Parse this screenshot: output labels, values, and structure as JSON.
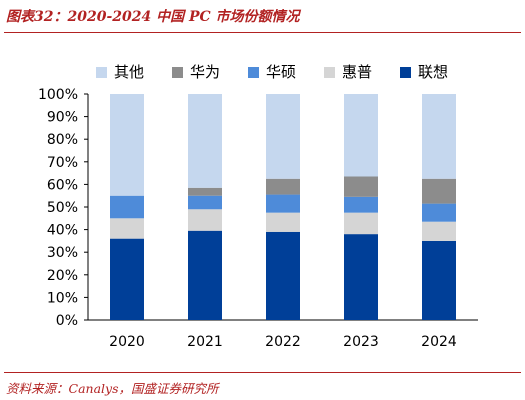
{
  "header": {
    "title": "图表32：2020-2024 中国 PC 市场份额情况"
  },
  "footer": {
    "source": "资料来源：Canalys，国盛证券研究所"
  },
  "chart_data": {
    "type": "bar",
    "stacked": true,
    "categories": [
      "2020",
      "2021",
      "2022",
      "2023",
      "2024"
    ],
    "series": [
      {
        "name": "联想",
        "color": "#003f98",
        "values": [
          36,
          39.5,
          39,
          38,
          35
        ]
      },
      {
        "name": "惠普",
        "color": "#d5d5d5",
        "values": [
          9,
          9.5,
          8.5,
          9.5,
          8.5
        ]
      },
      {
        "name": "华硕",
        "color": "#4e8bd9",
        "values": [
          10,
          6,
          8,
          7,
          8
        ]
      },
      {
        "name": "华为",
        "color": "#8c8c8c",
        "values": [
          0,
          3.5,
          7,
          9,
          11
        ]
      },
      {
        "name": "其他",
        "color": "#c5d7ee",
        "values": [
          45,
          41.5,
          37.5,
          36.5,
          37.5
        ]
      }
    ],
    "legend_order": [
      "其他",
      "华为",
      "华硕",
      "惠普",
      "联想"
    ],
    "legend_position": "top",
    "ylim": [
      0,
      100
    ],
    "yticks": [
      "0%",
      "10%",
      "20%",
      "30%",
      "40%",
      "50%",
      "60%",
      "70%",
      "80%",
      "90%",
      "100%"
    ],
    "grid": false
  }
}
